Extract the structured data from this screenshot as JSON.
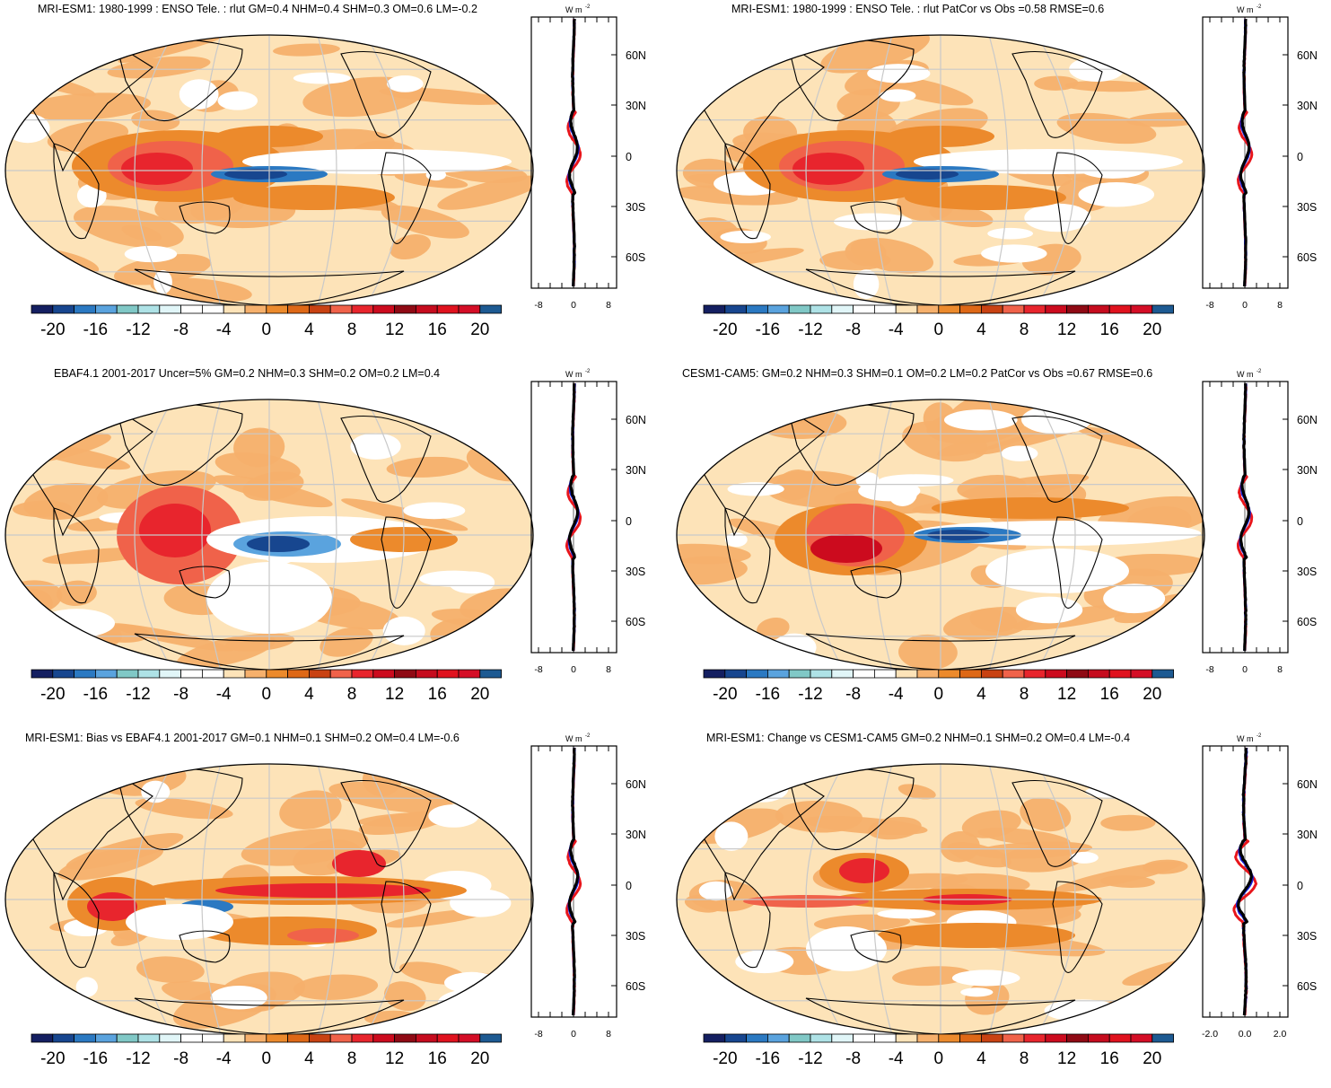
{
  "panels": [
    {
      "title": "MRI-ESM1: 1980-1999 : ENSO Tele. : rlut GM=0.4 NHM=0.4 SHM=0.3 OM=0.6 LM=-0.2",
      "profile_xticks": [
        "-8",
        "0",
        "8"
      ],
      "profile_unit": "W m",
      "profile_unit_sup": "-2",
      "lat_labels": [
        "60N",
        "30N",
        "0",
        "30S",
        "60S"
      ],
      "colorbar_labels": [
        "-20",
        "-16",
        "-12",
        "-8",
        "-4",
        "0",
        "4",
        "8",
        "12",
        "16",
        "20"
      ]
    },
    {
      "title": "MRI-ESM1: 1980-1999 : ENSO Tele. : rlut PatCor vs Obs =0.58 RMSE=0.6",
      "profile_xticks": [
        "-8",
        "0",
        "8"
      ],
      "profile_unit": "W m",
      "profile_unit_sup": "-2",
      "lat_labels": [
        "60N",
        "30N",
        "0",
        "30S",
        "60S"
      ],
      "colorbar_labels": [
        "-20",
        "-16",
        "-12",
        "-8",
        "-4",
        "0",
        "4",
        "8",
        "12",
        "16",
        "20"
      ]
    },
    {
      "title": "EBAF4.1 2001-2017 Uncer=5% GM=0.2 NHM=0.3 SHM=0.2 OM=0.2 LM=0.4",
      "profile_xticks": [
        "-8",
        "0",
        "8"
      ],
      "profile_unit": "W m",
      "profile_unit_sup": "-2",
      "lat_labels": [
        "60N",
        "30N",
        "0",
        "30S",
        "60S"
      ],
      "colorbar_labels": [
        "-20",
        "-16",
        "-12",
        "-8",
        "-4",
        "0",
        "4",
        "8",
        "12",
        "16",
        "20"
      ]
    },
    {
      "title": "CESM1-CAM5: GM=0.2 NHM=0.3 SHM=0.1 OM=0.2 LM=0.2 PatCor vs Obs =0.67 RMSE=0.6",
      "profile_xticks": [
        "-8",
        "0",
        "8"
      ],
      "profile_unit": "W m",
      "profile_unit_sup": "-2",
      "lat_labels": [
        "60N",
        "30N",
        "0",
        "30S",
        "60S"
      ],
      "colorbar_labels": [
        "-20",
        "-16",
        "-12",
        "-8",
        "-4",
        "0",
        "4",
        "8",
        "12",
        "16",
        "20"
      ]
    },
    {
      "title": "MRI-ESM1: Bias vs EBAF4.1 2001-2017 GM=0.1 NHM=0.1 SHM=0.2 OM=0.4 LM=-0.6",
      "profile_xticks": [
        "-8",
        "0",
        "8"
      ],
      "profile_unit": "W m",
      "profile_unit_sup": "-2",
      "lat_labels": [
        "60N",
        "30N",
        "0",
        "30S",
        "60S"
      ],
      "colorbar_labels": [
        "-20",
        "-16",
        "-12",
        "-8",
        "-4",
        "0",
        "4",
        "8",
        "12",
        "16",
        "20"
      ]
    },
    {
      "title": "MRI-ESM1: Change vs CESM1-CAM5 GM=0.2 NHM=0.1 SHM=0.2 OM=0.4 LM=-0.4",
      "profile_xticks": [
        "-2.0",
        "0.0",
        "2.0"
      ],
      "profile_unit": "W m",
      "profile_unit_sup": "-2",
      "lat_labels": [
        "60N",
        "30N",
        "0",
        "30S",
        "60S"
      ],
      "colorbar_labels": [
        "-20",
        "-16",
        "-12",
        "-8",
        "-4",
        "0",
        "4",
        "8",
        "12",
        "16",
        "20"
      ]
    }
  ],
  "colors": {
    "palette": [
      "#141f61",
      "#17468f",
      "#2b79c2",
      "#5aa3de",
      "#80c8c6",
      "#aee2e6",
      "#e1f6f8",
      "#ffffff",
      "#ffffff",
      "#fde3b8",
      "#f6b06c",
      "#ec8a2c",
      "#de6816",
      "#c94212",
      "#f0624a",
      "#e8252d",
      "#cc0b1e",
      "#8f0a14",
      "#c60c1e",
      "#e0121e",
      "#d40e26",
      "#1d5a92"
    ],
    "profile_red": "#e8151b",
    "profile_blue": "#1720dc",
    "profile_black": "#000000"
  }
}
